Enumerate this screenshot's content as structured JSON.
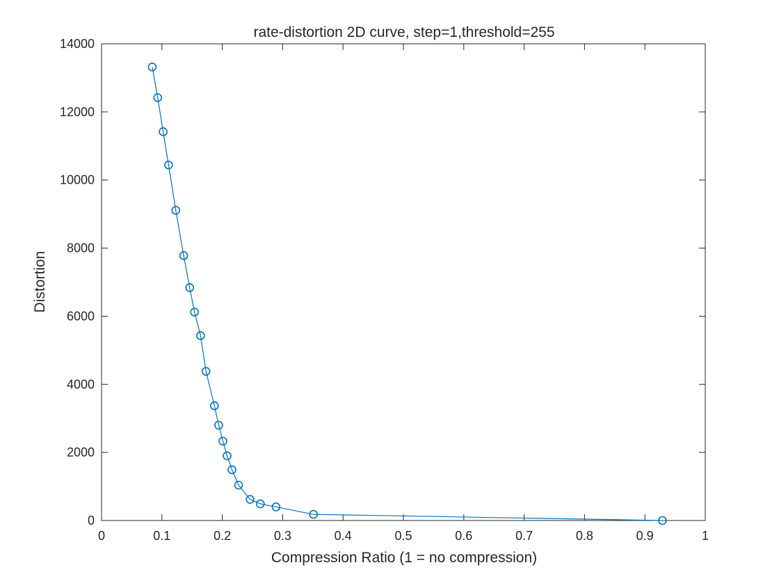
{
  "chart_data": {
    "type": "line",
    "title": "rate-distortion 2D curve, step=1,threshold=255",
    "xlabel": "Compression Ratio (1 = no compression)",
    "ylabel": "Distortion",
    "xlim": [
      0,
      1
    ],
    "ylim": [
      0,
      14000
    ],
    "xticks": [
      0,
      0.1,
      0.2,
      0.3,
      0.4,
      0.5,
      0.6,
      0.7,
      0.8,
      0.9,
      1
    ],
    "xtick_labels": [
      "0",
      "0.1",
      "0.2",
      "0.3",
      "0.4",
      "0.5",
      "0.6",
      "0.7",
      "0.8",
      "0.9",
      "1"
    ],
    "yticks": [
      0,
      2000,
      4000,
      6000,
      8000,
      10000,
      12000,
      14000
    ],
    "ytick_labels": [
      "0",
      "2000",
      "4000",
      "6000",
      "8000",
      "10000",
      "12000",
      "14000"
    ],
    "grid": false,
    "marker": "circle",
    "color": "#0072BD",
    "series": [
      {
        "x": [
          0.084,
          0.093,
          0.102,
          0.111,
          0.123,
          0.136,
          0.146,
          0.154,
          0.164,
          0.173,
          0.187,
          0.194,
          0.201,
          0.208,
          0.216,
          0.227,
          0.246,
          0.263,
          0.289,
          0.351,
          0.929
        ],
        "y": [
          13320,
          12420,
          11420,
          10440,
          9110,
          7780,
          6840,
          6120,
          5430,
          4380,
          3370,
          2800,
          2330,
          1900,
          1490,
          1040,
          620,
          490,
          400,
          180,
          0
        ]
      }
    ]
  }
}
